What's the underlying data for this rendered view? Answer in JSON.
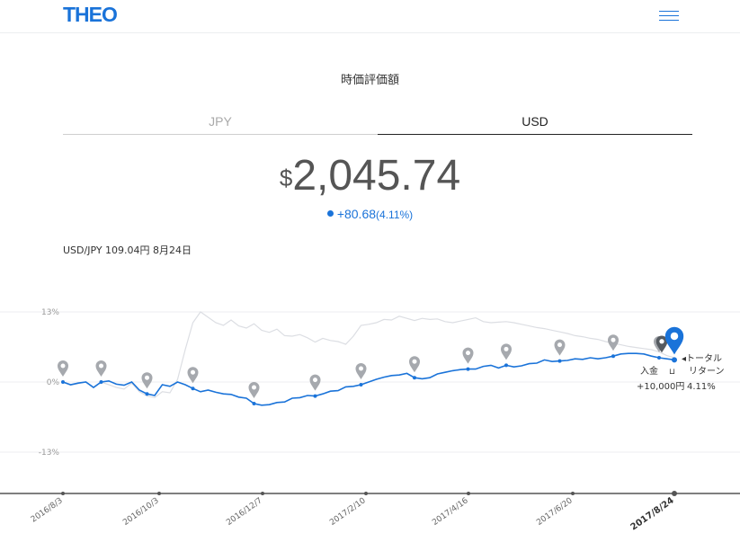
{
  "header": {
    "logo": "THEO",
    "menu_icon": "hamburger-icon"
  },
  "title": "時価評価額",
  "tabs": [
    {
      "label": "JPY",
      "active": false
    },
    {
      "label": "USD",
      "active": true
    }
  ],
  "valuation": {
    "currency": "$",
    "amount": "2,045.74",
    "change": "+80.68",
    "change_pct": "(4.11%)"
  },
  "fx_rate": "USD/JPY 109.04円 8月24日",
  "colors": {
    "accent": "#1a73d9",
    "benchmark": "#dcdee3",
    "pin": "#a6a9ae"
  },
  "annotations": {
    "deposit_label": "入金",
    "deposit_amount": "+10,000円",
    "total_return_line1": "◂トータル",
    "total_return_line2": "リターン",
    "total_return_pct": "4.11%"
  },
  "chart_data": {
    "type": "line",
    "yticks": [
      "13%",
      "0%",
      "-13%"
    ],
    "ylim": [
      -21,
      17
    ],
    "x_tick_labels": [
      "2016/8/3",
      "2016/10/3",
      "2016/12/7",
      "2017/2/10",
      "2017/4/16",
      "2017/6/20",
      "2017/8/24"
    ],
    "series": [
      {
        "role": "portfolio",
        "values": [
          0,
          -0.5,
          -0.2,
          0,
          -1,
          0,
          0.2,
          -0.4,
          -0.6,
          0,
          -1.5,
          -2.2,
          -2.5,
          -0.5,
          -0.8,
          0,
          -0.5,
          -1.2,
          -1.8,
          -1.5,
          -1.9,
          -2.2,
          -2.3,
          -2.8,
          -3.0,
          -4.0,
          -4.3,
          -4.2,
          -3.8,
          -3.7,
          -3.0,
          -2.9,
          -2.5,
          -2.6,
          -2.2,
          -1.7,
          -1.6,
          -0.9,
          -0.8,
          -0.5,
          0,
          0.5,
          0.9,
          1.2,
          1.3,
          1.6,
          0.8,
          0.6,
          0.8,
          1.5,
          1.8,
          2.1,
          2.3,
          2.4,
          2.4,
          2.9,
          3.1,
          2.6,
          3.1,
          2.8,
          3.0,
          3.4,
          3.5,
          4.1,
          3.8,
          3.9,
          4.0,
          4.3,
          4.2,
          4.5,
          4.3,
          4.5,
          4.8,
          5.2,
          5.3,
          5.3,
          5.2,
          4.8,
          4.5,
          4.3,
          4.11
        ]
      },
      {
        "role": "benchmark",
        "values": [
          0,
          -0.6,
          -0.3,
          0,
          -1.1,
          0,
          -0.5,
          -1.0,
          -1.3,
          -0.2,
          -1.8,
          -2.6,
          -2.9,
          -1.8,
          -2.0,
          0.5,
          6,
          11,
          13,
          12,
          11,
          10.5,
          11.5,
          10.4,
          10,
          10.8,
          9.6,
          9.2,
          9.8,
          8.6,
          8.5,
          8.8,
          8.2,
          7.4,
          8.1,
          7.7,
          7.5,
          7.0,
          8.5,
          10.5,
          10.7,
          11.0,
          11.6,
          11.5,
          12.2,
          11.8,
          11.4,
          11.8,
          11.6,
          11.7,
          11.2,
          11.0,
          11.3,
          11.6,
          11.9,
          11.2,
          11.0,
          11.1,
          11.2,
          11.0,
          10.7,
          10.4,
          10.1,
          9.9,
          9.6,
          9.3,
          9.0,
          8.6,
          8.4,
          8.1,
          7.9,
          7.5,
          7.2,
          6.9,
          6.6,
          6.4,
          6.2,
          6.0,
          5.6,
          4.9,
          4.5
        ]
      }
    ],
    "deposit_markers": [
      0,
      5,
      11,
      17,
      25,
      33,
      39,
      46,
      53,
      58,
      65,
      72,
      78
    ]
  }
}
